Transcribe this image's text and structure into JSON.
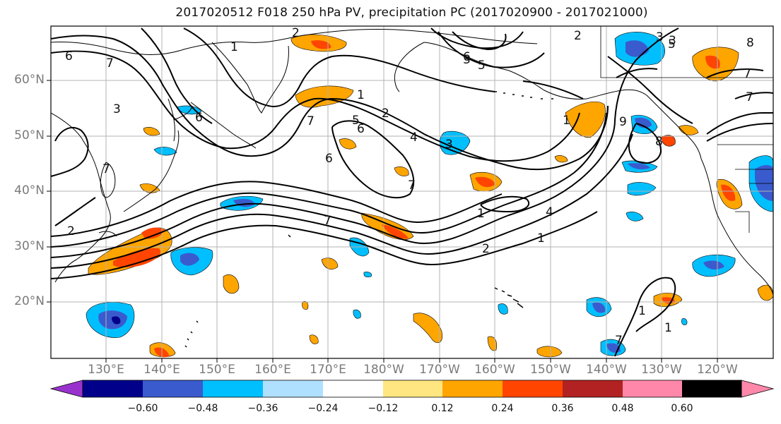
{
  "title": "2017020512 F018 250 hPa PV, precipitation PC (2017020900 - 2017021000)",
  "lat_labels": [
    "60°N",
    "50°N",
    "40°N",
    "30°N",
    "20°N"
  ],
  "lon_labels": [
    "130°E",
    "140°E",
    "150°E",
    "160°E",
    "170°E",
    "180°W",
    "170°W",
    "160°W",
    "150°W",
    "140°W",
    "130°W",
    "120°W"
  ],
  "colorbar": {
    "ticks": [
      "−0.60",
      "−0.48",
      "−0.36",
      "−0.24",
      "−0.12",
      "0.12",
      "0.24",
      "0.36",
      "0.48",
      "0.60"
    ],
    "colors": [
      "#9932cc",
      "#00008b",
      "#3a5bcd",
      "#00bfff",
      "#b0e0ff",
      "#ffffff",
      "#ffe680",
      "#ffa500",
      "#ff4500",
      "#b22222",
      "#ff88aa"
    ]
  },
  "contour_labels": [
    "2",
    "7",
    "6",
    "1",
    "2",
    "6",
    "7",
    "6",
    "7",
    "3",
    "7",
    "7",
    "5",
    "4",
    "3",
    "1",
    "2",
    "6",
    "3",
    "7",
    "5",
    "3",
    "1",
    "2",
    "4",
    "1",
    "7",
    "1",
    "2",
    "8",
    "1",
    "5",
    "6",
    "9",
    "8",
    "3",
    "7",
    "1"
  ]
}
